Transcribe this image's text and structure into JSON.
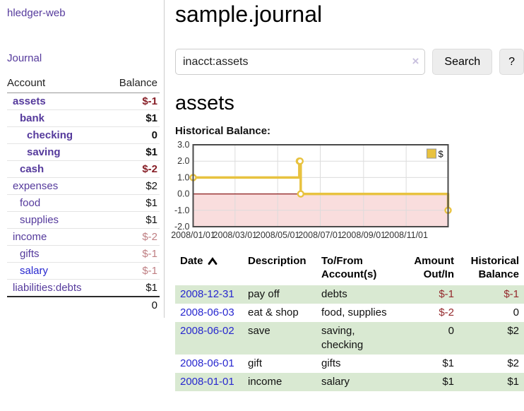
{
  "colors": {
    "purple": "#553a9c",
    "blue": "#2727cf",
    "neg_dark": "#871f27",
    "neg_soft": "#bf7f83",
    "neg_table": "#94292c",
    "stripe": "#d9e9d2",
    "gold": "#e8c23f",
    "pink": "#f5c6c6",
    "zero_line": "#8b1a1a",
    "grid": "#dcdcdc",
    "chart_border": "#4a4a4a",
    "divider": "#cccccc",
    "button_bg": "#ededed",
    "button_border": "#dcdcdc",
    "input_border": "#cccccc",
    "clear": "#c9c1de"
  },
  "sidebar": {
    "app_title": "hledger-web",
    "journal_label": "Journal",
    "accounts_table": {
      "headers": [
        "Account",
        "Balance"
      ],
      "rows": [
        {
          "name": "assets",
          "indent": 1,
          "bold": true,
          "balance": "$-1"
        },
        {
          "name": "bank",
          "indent": 2,
          "bold": true,
          "balance": "$1"
        },
        {
          "name": "checking",
          "indent": 3,
          "bold": true,
          "balance": "0"
        },
        {
          "name": "saving",
          "indent": 3,
          "bold": true,
          "balance": "$1"
        },
        {
          "name": "cash",
          "indent": 2,
          "bold": true,
          "balance": "$-2"
        },
        {
          "name": "expenses",
          "indent": 1,
          "bold": false,
          "balance": "$2"
        },
        {
          "name": "food",
          "indent": 2,
          "bold": false,
          "balance": "$1"
        },
        {
          "name": "supplies",
          "indent": 2,
          "bold": false,
          "balance": "$1"
        },
        {
          "name": "income",
          "indent": 1,
          "bold": false,
          "balance": "$-2"
        },
        {
          "name": "gifts",
          "indent": 2,
          "bold": false,
          "balance": "$-1"
        },
        {
          "name": "salary",
          "indent": 2,
          "bold": false,
          "balance": "$-1",
          "blue": true
        },
        {
          "name": "liabilities:debts",
          "indent": 1,
          "bold": false,
          "balance": "$1"
        }
      ],
      "total": "0"
    }
  },
  "main": {
    "title": "sample.journal",
    "search": {
      "value": "inacct:assets",
      "clear_icon": "×",
      "button_label": "Search",
      "help_label": "?"
    },
    "account_heading": "assets",
    "chart_label": "Historical Balance:",
    "register_table": {
      "headers": {
        "date": "Date",
        "description": "Description",
        "accounts_line1": "To/From",
        "accounts_line2": "Account(s)",
        "amount_line1": "Amount",
        "amount_line2": "Out/In",
        "balance_line1": "Historical",
        "balance_line2": "Balance"
      },
      "rows": [
        {
          "date": "2008-12-31",
          "description": "pay off",
          "accounts": "debts",
          "amount": "$-1",
          "balance": "$-1"
        },
        {
          "date": "2008-06-03",
          "description": "eat & shop",
          "accounts": "food, supplies",
          "amount": "$-2",
          "balance": "0"
        },
        {
          "date": "2008-06-02",
          "description": "save",
          "accounts": "saving, checking",
          "amount": "0",
          "balance": "$2"
        },
        {
          "date": "2008-06-01",
          "description": "gift",
          "accounts": "gifts",
          "amount": "$1",
          "balance": "$2"
        },
        {
          "date": "2008-01-01",
          "description": "income",
          "accounts": "salary",
          "amount": "$1",
          "balance": "$1"
        }
      ]
    }
  },
  "chart_data": {
    "type": "line",
    "step": true,
    "title": "Historical Balance",
    "series": [
      {
        "name": "$",
        "points": [
          [
            "2008-01-01",
            1
          ],
          [
            "2008-06-01",
            2
          ],
          [
            "2008-06-02",
            2
          ],
          [
            "2008-06-03",
            0
          ],
          [
            "2008-12-31",
            -1
          ]
        ]
      }
    ],
    "x_min": "2008-01-01",
    "x_max": "2008-12-31",
    "x_tick_dates": [
      "2008-01-01",
      "2008-03-01",
      "2008-05-01",
      "2008-07-01",
      "2008-09-01",
      "2008-11-01"
    ],
    "x_ticks": [
      "2008/01/01",
      "2008/03/01",
      "2008/05/01",
      "2008/07/01",
      "2008/09/01",
      "2008/11/01"
    ],
    "y_ticks": [
      3.0,
      2.0,
      1.0,
      0.0,
      -1.0,
      -2.0
    ],
    "ylim": [
      -2,
      3
    ],
    "grid": true,
    "legend_position": "top-right",
    "negative_region_shaded": true
  }
}
